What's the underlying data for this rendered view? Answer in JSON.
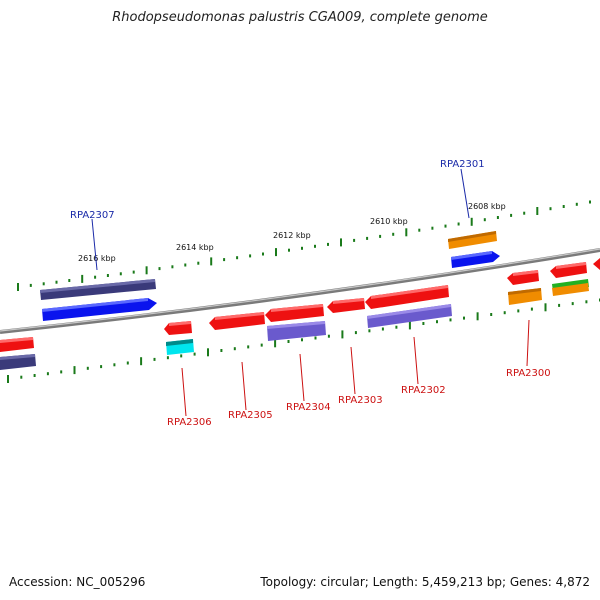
{
  "title": "Rhodopseudomonas palustris CGA009, complete genome",
  "footer": {
    "accession": "Accession: NC_005296",
    "topology": "Topology: circular; Length: 5,459,213 bp; Genes: 4,872"
  },
  "scale_ticks": [
    "2616 kbp",
    "2614 kbp",
    "2612 kbp",
    "2610 kbp",
    "2608 kbp"
  ],
  "gene_labels": {
    "forward": [
      "RPA2307",
      "RPA2301"
    ],
    "reverse": [
      "RPA2306",
      "RPA2305",
      "RPA2304",
      "RPA2303",
      "RPA2302",
      "RPA2300"
    ]
  },
  "colors": {
    "red": "#ee1111",
    "navy": "#3a3a7a",
    "blue": "#0a14ee",
    "slate": "#6a5acd",
    "orange": "#f08c00",
    "cyan": "#00e5ee",
    "green": "#22b022",
    "tick_green": "#1a7a1a",
    "backbone": "#8a8a8a"
  }
}
